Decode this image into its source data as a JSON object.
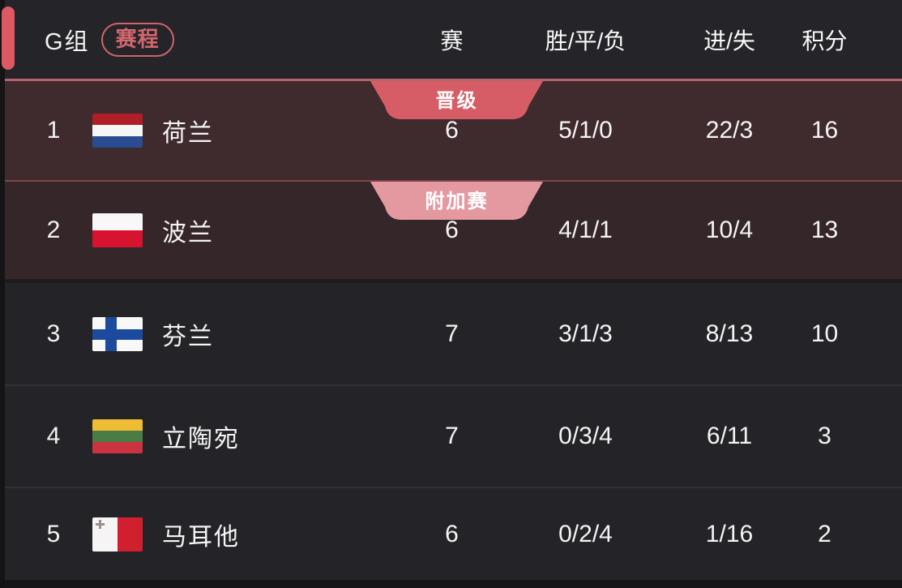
{
  "header": {
    "group_label": "G组",
    "schedule_badge_label": "赛程",
    "columns": {
      "played": "赛",
      "win_draw_loss": "胜/平/负",
      "goals_for_against": "进/失",
      "points": "积分"
    }
  },
  "table": {
    "rows": [
      {
        "rank": "1",
        "team": "荷兰",
        "flag": "netherlands-flag-icon",
        "badge": "晋级",
        "badge_type": "qualified",
        "played": "6",
        "win_draw_loss": "5/1/0",
        "goals_for_against": "22/3",
        "points": "16"
      },
      {
        "rank": "2",
        "team": "波兰",
        "flag": "poland-flag-icon",
        "badge": "附加赛",
        "badge_type": "playoff",
        "played": "6",
        "win_draw_loss": "4/1/1",
        "goals_for_against": "10/4",
        "points": "13"
      },
      {
        "rank": "3",
        "team": "芬兰",
        "flag": "finland-flag-icon",
        "played": "7",
        "win_draw_loss": "3/1/3",
        "goals_for_against": "8/13",
        "points": "10"
      },
      {
        "rank": "4",
        "team": "立陶宛",
        "flag": "lithuania-flag-icon",
        "played": "7",
        "win_draw_loss": "0/3/4",
        "goals_for_against": "6/11",
        "points": "3"
      },
      {
        "rank": "5",
        "team": "马耳他",
        "flag": "malta-flag-icon",
        "played": "6",
        "win_draw_loss": "0/2/4",
        "goals_for_against": "1/16",
        "points": "2"
      }
    ]
  },
  "colors": {
    "accent_red": "#dd5a64",
    "qualified_badge": "#d65d65",
    "playoff_badge": "#e499a1",
    "qualified_row_bg": "#3f2a2d",
    "playoff_row_bg": "#352629",
    "default_row_bg": "#242428",
    "header_separator": "#b5646c"
  }
}
